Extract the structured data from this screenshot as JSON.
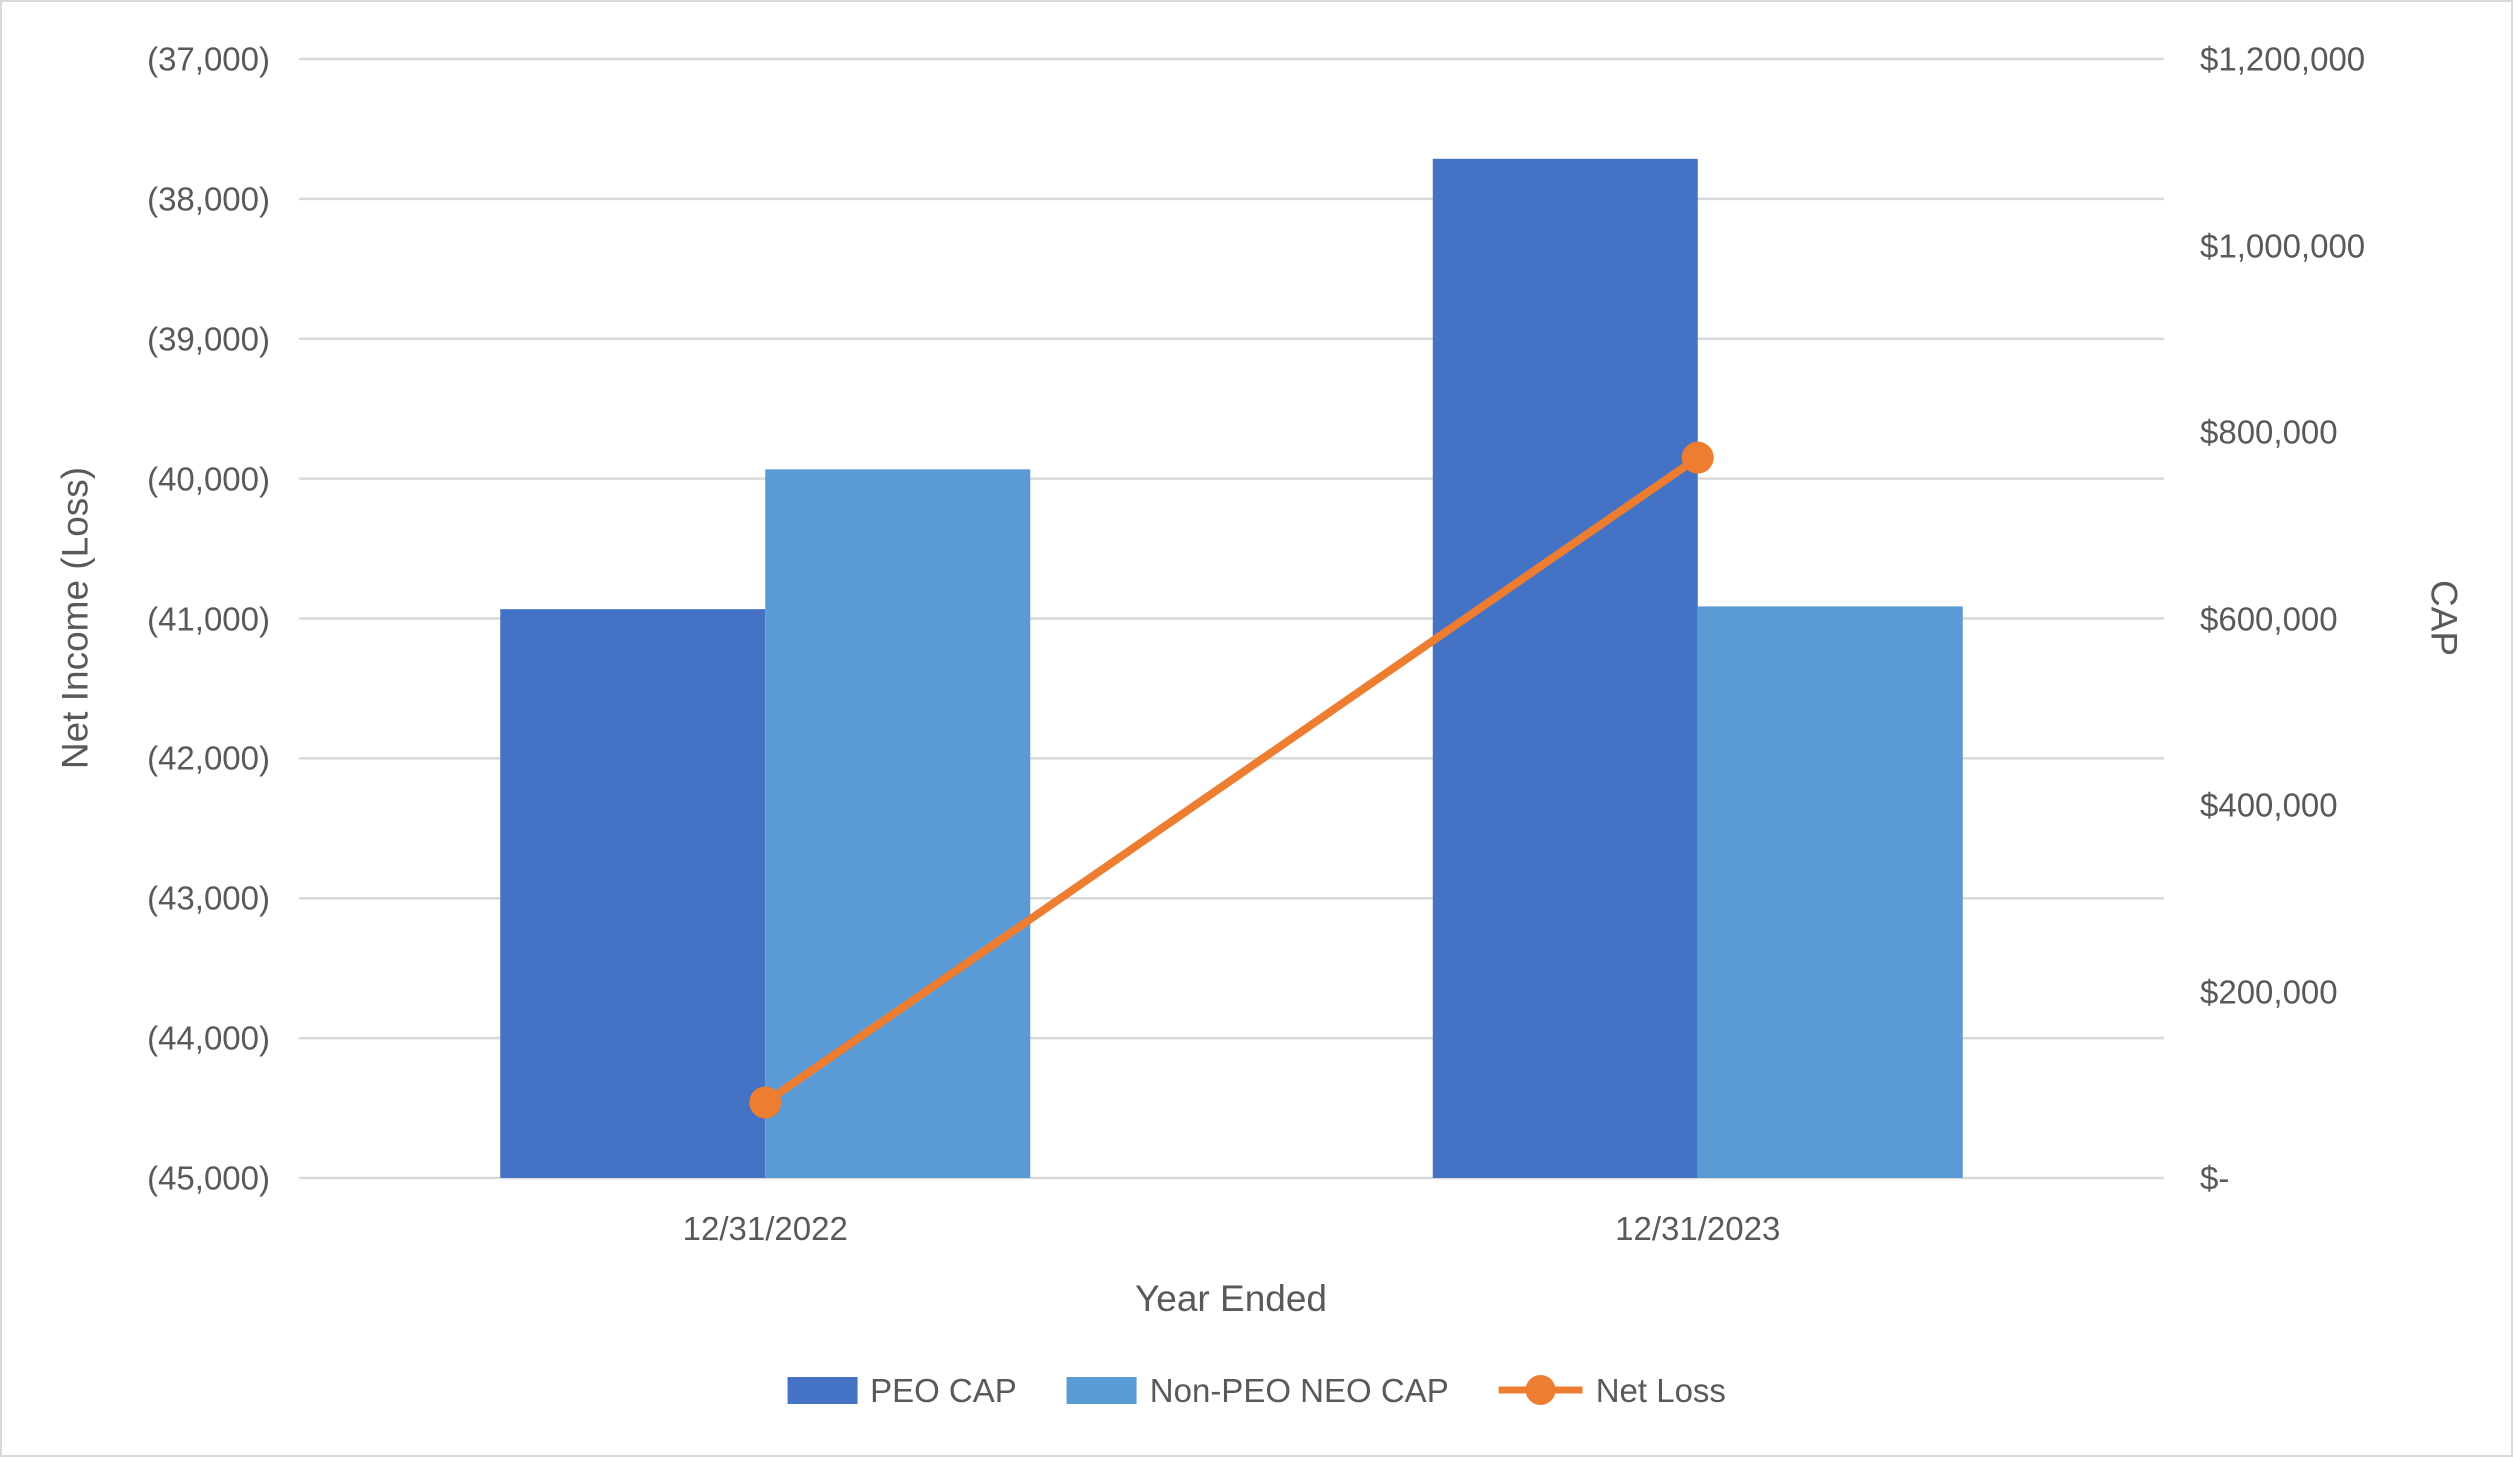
{
  "chart_data": {
    "type": "combo-bar-line",
    "categories": [
      "12/31/2022",
      "12/31/2023"
    ],
    "series": [
      {
        "name": "PEO CAP",
        "type": "bar",
        "axis": "right",
        "color": "#4472C4",
        "values": [
          610000,
          1093000
        ]
      },
      {
        "name": "Non-PEO NEO CAP",
        "type": "bar",
        "axis": "right",
        "color": "#5B9BD5",
        "values": [
          760000,
          613000
        ]
      },
      {
        "name": "Net Loss",
        "type": "line",
        "axis": "left",
        "color": "#ED7D31",
        "values": [
          -44460,
          -39850
        ]
      }
    ],
    "left_axis": {
      "title": "Net Income (Loss)",
      "min": -45000,
      "max": -37000,
      "ticks": [
        "(37,000)",
        "(38,000)",
        "(39,000)",
        "(40,000)",
        "(41,000)",
        "(42,000)",
        "(43,000)",
        "(44,000)",
        "(45,000)"
      ]
    },
    "right_axis": {
      "title": "CAP",
      "min": 0,
      "max": 1200000,
      "ticks": [
        "$1,200,000",
        "$1,000,000",
        "$800,000",
        "$600,000",
        "$400,000",
        "$200,000",
        "$-"
      ]
    },
    "x_axis": {
      "title": "Year Ended"
    },
    "legend_position": "bottom",
    "grid": true,
    "style": {
      "grid_color": "#D9D9D9",
      "text_color": "#595959",
      "background": "#FFFFFF",
      "border_color": "#D9D9D9"
    }
  }
}
